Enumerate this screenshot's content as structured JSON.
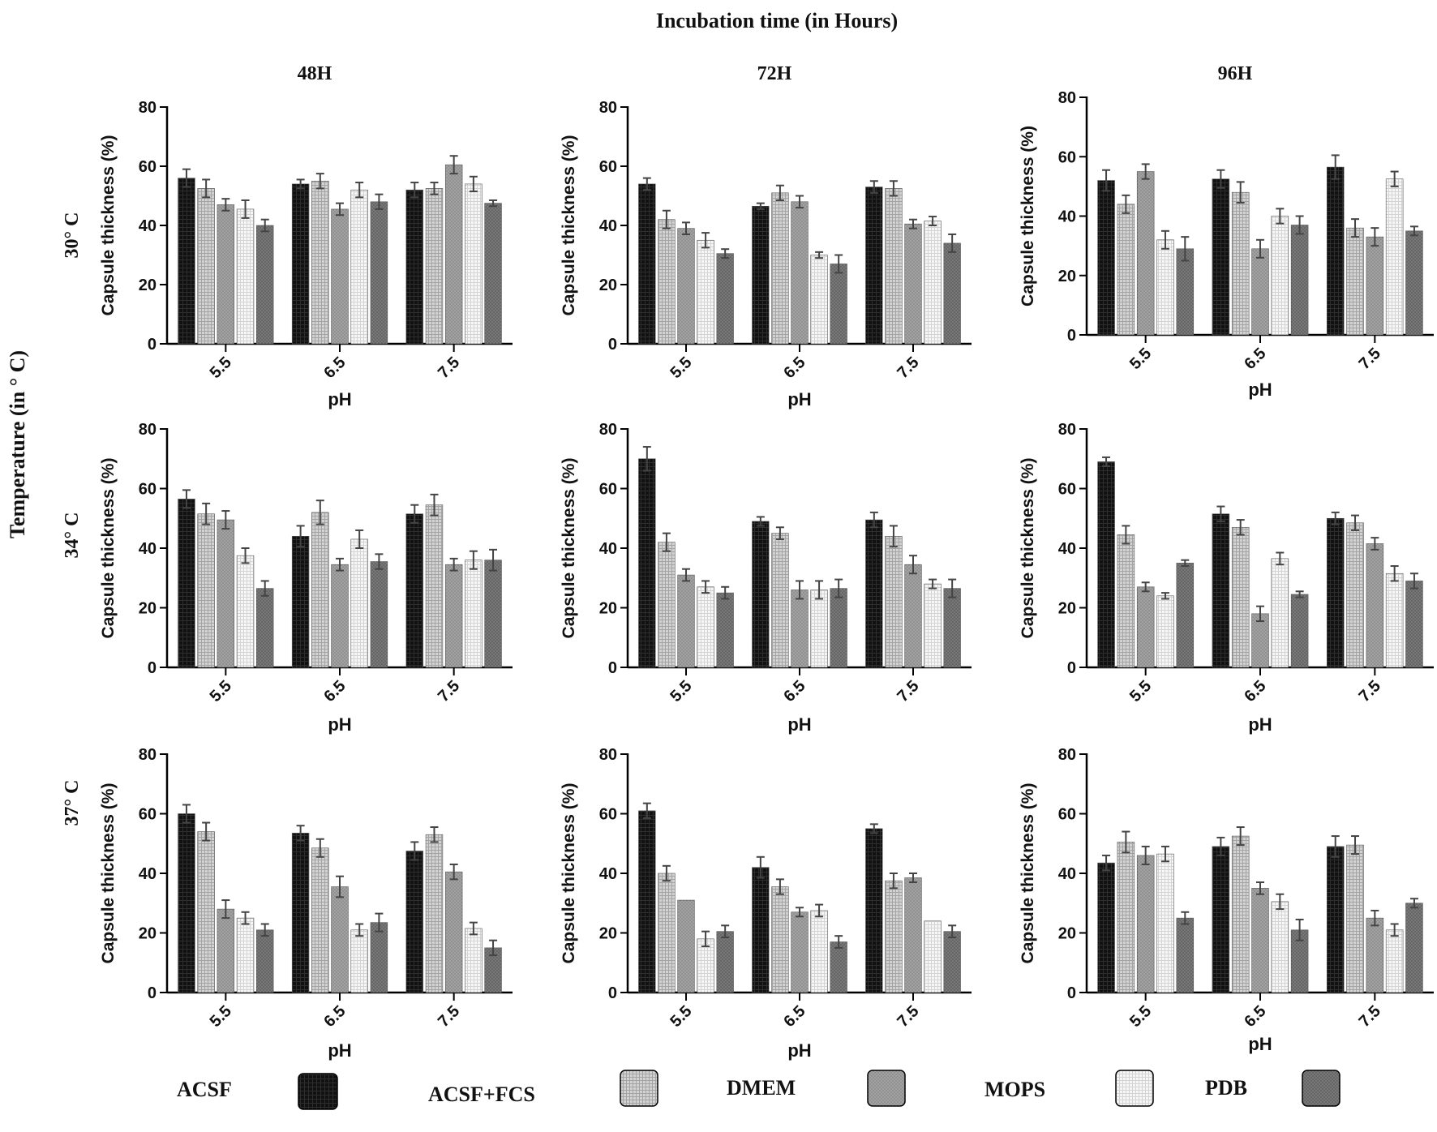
{
  "figure": {
    "col_header_title": "Incubation time (in Hours)",
    "row_header_title": "Temperature (in ° C)",
    "columns": [
      "48H",
      "72H",
      "96H"
    ],
    "rows": [
      "30° C",
      "34° C",
      "37° C"
    ]
  },
  "legend": {
    "items": [
      {
        "label": "ACSF",
        "fill": "#0e0e0e"
      },
      {
        "label": "ACSF+FCS",
        "fill": "#c8c8c8"
      },
      {
        "label": "DMEM",
        "fill": "#9a9a9a"
      },
      {
        "label": "MOPS",
        "fill": "#eeeeee"
      },
      {
        "label": "PDB",
        "fill": "#6e6e6e"
      }
    ]
  },
  "colors": {
    "ACSF": "#0e0e0e",
    "ACSF+FCS": "#c8c8c8",
    "DMEM": "#9a9a9a",
    "MOPS": "#eeeeee",
    "PDB": "#6e6e6e",
    "axis": "#000000"
  },
  "chart_data": [
    {
      "type": "bar",
      "row": "30° C",
      "column": "48H",
      "xlabel": "pH",
      "ylabel": "Capsule thickness (%)",
      "ylim": [
        0,
        80
      ],
      "yticks": [
        0,
        20,
        40,
        60,
        80
      ],
      "categories": [
        "5.5",
        "6.5",
        "7.5"
      ],
      "series": [
        {
          "name": "ACSF",
          "values": [
            56,
            54,
            52
          ],
          "errors": [
            3,
            1.5,
            2.5
          ]
        },
        {
          "name": "ACSF+FCS",
          "values": [
            52.5,
            55,
            52.5
          ],
          "errors": [
            3,
            2.5,
            2
          ]
        },
        {
          "name": "DMEM",
          "values": [
            47,
            45.5,
            60.5
          ],
          "errors": [
            2,
            2,
            3
          ]
        },
        {
          "name": "MOPS",
          "values": [
            45.5,
            52,
            54
          ],
          "errors": [
            3,
            2.5,
            2.5
          ]
        },
        {
          "name": "PDB",
          "values": [
            40,
            48,
            47.5
          ],
          "errors": [
            2,
            2.5,
            1
          ]
        }
      ]
    },
    {
      "type": "bar",
      "row": "30° C",
      "column": "72H",
      "xlabel": "pH",
      "ylabel": "Capsule thickness (%)",
      "ylim": [
        0,
        80
      ],
      "yticks": [
        0,
        20,
        40,
        60,
        80
      ],
      "categories": [
        "5.5",
        "6.5",
        "7.5"
      ],
      "series": [
        {
          "name": "ACSF",
          "values": [
            54,
            46.5,
            53
          ],
          "errors": [
            2,
            1,
            2
          ]
        },
        {
          "name": "ACSF+FCS",
          "values": [
            42,
            51,
            52.5
          ],
          "errors": [
            3,
            2.5,
            2.5
          ]
        },
        {
          "name": "DMEM",
          "values": [
            39,
            48,
            40.5
          ],
          "errors": [
            2,
            2,
            1.5
          ]
        },
        {
          "name": "MOPS",
          "values": [
            35,
            30,
            41.5
          ],
          "errors": [
            2.5,
            1,
            1.5
          ]
        },
        {
          "name": "PDB",
          "values": [
            30.5,
            27,
            34
          ],
          "errors": [
            1.5,
            3,
            3
          ]
        }
      ]
    },
    {
      "type": "bar",
      "row": "30° C",
      "column": "96H",
      "xlabel": "pH",
      "ylabel": "Capsule thickness (%)",
      "ylim": [
        0,
        80
      ],
      "yticks": [
        0,
        20,
        40,
        60,
        80
      ],
      "categories": [
        "5.5",
        "6.5",
        "7.5"
      ],
      "series": [
        {
          "name": "ACSF",
          "values": [
            52,
            52.5,
            56.5
          ],
          "errors": [
            3.5,
            3,
            4
          ]
        },
        {
          "name": "ACSF+FCS",
          "values": [
            44,
            48,
            36
          ],
          "errors": [
            3,
            3.5,
            3
          ]
        },
        {
          "name": "DMEM",
          "values": [
            55,
            29,
            33
          ],
          "errors": [
            2.5,
            3,
            3
          ]
        },
        {
          "name": "MOPS",
          "values": [
            32,
            40,
            52.5
          ],
          "errors": [
            3,
            2.5,
            2.5
          ]
        },
        {
          "name": "PDB",
          "values": [
            29,
            37,
            35
          ],
          "errors": [
            4,
            3,
            1.5
          ]
        }
      ]
    },
    {
      "type": "bar",
      "row": "34° C",
      "column": "48H",
      "xlabel": "pH",
      "ylabel": "Capsule thickness (%)",
      "ylim": [
        0,
        80
      ],
      "yticks": [
        0,
        20,
        40,
        60,
        80
      ],
      "categories": [
        "5.5",
        "6.5",
        "7.5"
      ],
      "series": [
        {
          "name": "ACSF",
          "values": [
            56.5,
            44,
            51.5
          ],
          "errors": [
            3,
            3.5,
            3
          ]
        },
        {
          "name": "ACSF+FCS",
          "values": [
            51.5,
            52,
            54.5
          ],
          "errors": [
            3.5,
            4,
            3.5
          ]
        },
        {
          "name": "DMEM",
          "values": [
            49.5,
            34.5,
            34.5
          ],
          "errors": [
            3,
            2,
            2
          ]
        },
        {
          "name": "MOPS",
          "values": [
            37.5,
            43,
            36
          ],
          "errors": [
            2.5,
            3,
            3
          ]
        },
        {
          "name": "PDB",
          "values": [
            26.5,
            35.5,
            36
          ],
          "errors": [
            2.5,
            2.5,
            3.5
          ]
        }
      ]
    },
    {
      "type": "bar",
      "row": "34° C",
      "column": "72H",
      "xlabel": "pH",
      "ylabel": "Capsule thickness (%)",
      "ylim": [
        0,
        80
      ],
      "yticks": [
        0,
        20,
        40,
        60,
        80
      ],
      "categories": [
        "5.5",
        "6.5",
        "7.5"
      ],
      "series": [
        {
          "name": "ACSF",
          "values": [
            70,
            49,
            49.5
          ],
          "errors": [
            4,
            1.5,
            2.5
          ]
        },
        {
          "name": "ACSF+FCS",
          "values": [
            42,
            45,
            44
          ],
          "errors": [
            3,
            2,
            3.5
          ]
        },
        {
          "name": "DMEM",
          "values": [
            31,
            26,
            34.5
          ],
          "errors": [
            2,
            3,
            3
          ]
        },
        {
          "name": "MOPS",
          "values": [
            27,
            26,
            28
          ],
          "errors": [
            2,
            3,
            1.5
          ]
        },
        {
          "name": "PDB",
          "values": [
            25,
            26.5,
            26.5
          ],
          "errors": [
            2,
            3,
            3
          ]
        }
      ]
    },
    {
      "type": "bar",
      "row": "34° C",
      "column": "96H",
      "xlabel": "pH",
      "ylabel": "Capsule thickness (%)",
      "ylim": [
        0,
        80
      ],
      "yticks": [
        0,
        20,
        40,
        60,
        80
      ],
      "categories": [
        "5.5",
        "6.5",
        "7.5"
      ],
      "series": [
        {
          "name": "ACSF",
          "values": [
            69,
            51.5,
            50
          ],
          "errors": [
            1.5,
            2.5,
            2
          ]
        },
        {
          "name": "ACSF+FCS",
          "values": [
            44.5,
            47,
            48.5
          ],
          "errors": [
            3,
            2.5,
            2.5
          ]
        },
        {
          "name": "DMEM",
          "values": [
            27,
            18,
            41.5
          ],
          "errors": [
            1.5,
            2.5,
            2
          ]
        },
        {
          "name": "MOPS",
          "values": [
            24,
            36.5,
            31.5
          ],
          "errors": [
            1,
            2,
            2.5
          ]
        },
        {
          "name": "PDB",
          "values": [
            35,
            24.5,
            29
          ],
          "errors": [
            1,
            1,
            2.5
          ]
        }
      ]
    },
    {
      "type": "bar",
      "row": "37° C",
      "column": "48H",
      "xlabel": "pH",
      "ylabel": "Capsule thickness (%)",
      "ylim": [
        0,
        80
      ],
      "yticks": [
        0,
        20,
        40,
        60,
        80
      ],
      "categories": [
        "5.5",
        "6.5",
        "7.5"
      ],
      "series": [
        {
          "name": "ACSF",
          "values": [
            60,
            53.5,
            47.5
          ],
          "errors": [
            3,
            2.5,
            3
          ]
        },
        {
          "name": "ACSF+FCS",
          "values": [
            54,
            48.5,
            53
          ],
          "errors": [
            3,
            3,
            2.5
          ]
        },
        {
          "name": "DMEM",
          "values": [
            28,
            35.5,
            40.5
          ],
          "errors": [
            3,
            3.5,
            2.5
          ]
        },
        {
          "name": "MOPS",
          "values": [
            25,
            21,
            21.5
          ],
          "errors": [
            2,
            2,
            2
          ]
        },
        {
          "name": "PDB",
          "values": [
            21,
            23.5,
            15
          ],
          "errors": [
            2,
            3,
            2.5
          ]
        }
      ]
    },
    {
      "type": "bar",
      "row": "37° C",
      "column": "72H",
      "xlabel": "pH",
      "ylabel": "Capsule thickness (%)",
      "ylim": [
        0,
        80
      ],
      "yticks": [
        0,
        20,
        40,
        60,
        80
      ],
      "categories": [
        "5.5",
        "6.5",
        "7.5"
      ],
      "series": [
        {
          "name": "ACSF",
          "values": [
            61,
            42,
            55
          ],
          "errors": [
            2.5,
            3.5,
            1.5
          ]
        },
        {
          "name": "ACSF+FCS",
          "values": [
            40,
            35.5,
            37.5
          ],
          "errors": [
            2.5,
            2.5,
            2.5
          ]
        },
        {
          "name": "DMEM",
          "values": [
            31,
            27,
            38.5
          ],
          "errors": [
            0,
            1.5,
            1.5
          ]
        },
        {
          "name": "MOPS",
          "values": [
            18,
            27.5,
            24
          ],
          "errors": [
            2.5,
            2,
            0
          ]
        },
        {
          "name": "PDB",
          "values": [
            20.5,
            17,
            20.5
          ],
          "errors": [
            2,
            2,
            2
          ]
        }
      ]
    },
    {
      "type": "bar",
      "row": "37° C",
      "column": "96H",
      "xlabel": "pH",
      "ylabel": "Capsule thickness (%)",
      "ylim": [
        0,
        80
      ],
      "yticks": [
        0,
        20,
        40,
        60,
        80
      ],
      "categories": [
        "5.5",
        "6.5",
        "7.5"
      ],
      "series": [
        {
          "name": "ACSF",
          "values": [
            43.5,
            49,
            49
          ],
          "errors": [
            2.5,
            3,
            3.5
          ]
        },
        {
          "name": "ACSF+FCS",
          "values": [
            50.5,
            52.5,
            49.5
          ],
          "errors": [
            3.5,
            3,
            3
          ]
        },
        {
          "name": "DMEM",
          "values": [
            46,
            35,
            25
          ],
          "errors": [
            3,
            2,
            2.5
          ]
        },
        {
          "name": "MOPS",
          "values": [
            46.5,
            30.5,
            21
          ],
          "errors": [
            2.5,
            2.5,
            2
          ]
        },
        {
          "name": "PDB",
          "values": [
            25,
            21,
            30
          ],
          "errors": [
            2,
            3.5,
            1.5
          ]
        }
      ]
    }
  ]
}
